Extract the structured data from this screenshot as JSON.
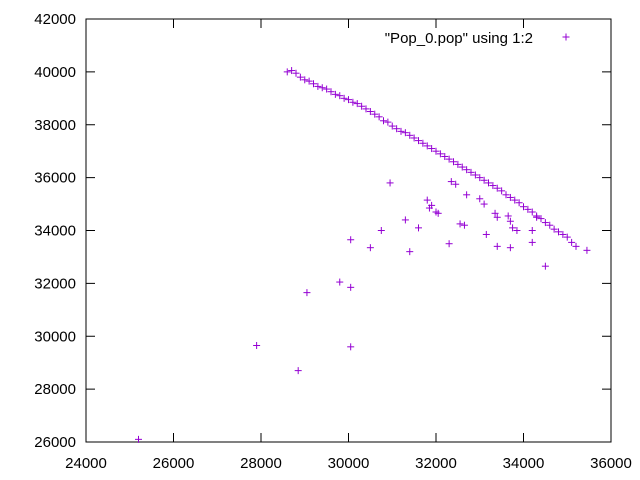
{
  "chart_data": {
    "type": "scatter",
    "title": "",
    "xlabel": "",
    "ylabel": "",
    "xlim": [
      24000,
      36000
    ],
    "ylim": [
      26000,
      42000
    ],
    "xticks": [
      "24000",
      "26000",
      "28000",
      "30000",
      "32000",
      "34000",
      "36000"
    ],
    "yticks": [
      "26000",
      "28000",
      "30000",
      "32000",
      "34000",
      "36000",
      "38000",
      "40000",
      "42000"
    ],
    "grid": false,
    "legend_position": "top-right",
    "marker": "plus",
    "series": [
      {
        "name": "\"Pop_0.pop\" using 1:2",
        "color": "#9400d3",
        "points": [
          [
            28600,
            40000
          ],
          [
            28700,
            40050
          ],
          [
            28800,
            39950
          ],
          [
            28900,
            39800
          ],
          [
            29000,
            39700
          ],
          [
            29100,
            39650
          ],
          [
            29200,
            39550
          ],
          [
            29300,
            39450
          ],
          [
            29400,
            39400
          ],
          [
            29500,
            39350
          ],
          [
            29600,
            39250
          ],
          [
            29700,
            39150
          ],
          [
            29800,
            39100
          ],
          [
            29900,
            39000
          ],
          [
            30000,
            38950
          ],
          [
            30100,
            38850
          ],
          [
            30200,
            38800
          ],
          [
            30300,
            38700
          ],
          [
            30400,
            38600
          ],
          [
            30500,
            38500
          ],
          [
            30600,
            38400
          ],
          [
            30700,
            38300
          ],
          [
            30800,
            38150
          ],
          [
            30900,
            38100
          ],
          [
            31000,
            37950
          ],
          [
            31100,
            37850
          ],
          [
            31200,
            37750
          ],
          [
            31300,
            37700
          ],
          [
            31400,
            37600
          ],
          [
            31500,
            37500
          ],
          [
            31600,
            37400
          ],
          [
            31700,
            37300
          ],
          [
            31800,
            37200
          ],
          [
            31900,
            37100
          ],
          [
            32000,
            37000
          ],
          [
            32100,
            36900
          ],
          [
            32200,
            36800
          ],
          [
            32300,
            36700
          ],
          [
            32400,
            36600
          ],
          [
            32500,
            36500
          ],
          [
            32600,
            36400
          ],
          [
            32700,
            36300
          ],
          [
            32800,
            36200
          ],
          [
            32900,
            36100
          ],
          [
            33000,
            36000
          ],
          [
            33100,
            35900
          ],
          [
            33200,
            35800
          ],
          [
            33300,
            35700
          ],
          [
            33400,
            35600
          ],
          [
            33500,
            35500
          ],
          [
            33600,
            35350
          ],
          [
            33700,
            35250
          ],
          [
            33800,
            35150
          ],
          [
            33900,
            35050
          ],
          [
            34000,
            34900
          ],
          [
            34100,
            34800
          ],
          [
            34200,
            34700
          ],
          [
            34300,
            34550
          ],
          [
            34400,
            34450
          ],
          [
            34500,
            34300
          ],
          [
            34600,
            34200
          ],
          [
            34700,
            34050
          ],
          [
            34800,
            33950
          ],
          [
            34900,
            33850
          ],
          [
            35000,
            33750
          ],
          [
            35100,
            33550
          ],
          [
            35200,
            33400
          ],
          [
            35450,
            33250
          ],
          [
            30950,
            35800
          ],
          [
            31800,
            35150
          ],
          [
            31850,
            34850
          ],
          [
            31900,
            34950
          ],
          [
            32000,
            34700
          ],
          [
            32050,
            34650
          ],
          [
            32350,
            35850
          ],
          [
            32450,
            35750
          ],
          [
            32700,
            35350
          ],
          [
            33000,
            35200
          ],
          [
            33100,
            35000
          ],
          [
            33350,
            34650
          ],
          [
            33400,
            34500
          ],
          [
            33650,
            34550
          ],
          [
            33700,
            34350
          ],
          [
            33750,
            34100
          ],
          [
            33850,
            34000
          ],
          [
            34200,
            34000
          ],
          [
            34300,
            34500
          ],
          [
            30750,
            34000
          ],
          [
            31300,
            34400
          ],
          [
            31600,
            34100
          ],
          [
            32550,
            34250
          ],
          [
            32650,
            34200
          ],
          [
            33150,
            33850
          ],
          [
            30050,
            33650
          ],
          [
            30500,
            33350
          ],
          [
            31400,
            33200
          ],
          [
            32300,
            33500
          ],
          [
            33400,
            33400
          ],
          [
            33700,
            33350
          ],
          [
            34200,
            33550
          ],
          [
            34500,
            32650
          ],
          [
            29800,
            32050
          ],
          [
            30050,
            31850
          ],
          [
            29050,
            31650
          ],
          [
            27900,
            29650
          ],
          [
            30050,
            29600
          ],
          [
            28850,
            28700
          ],
          [
            25200,
            26100
          ]
        ]
      }
    ]
  }
}
